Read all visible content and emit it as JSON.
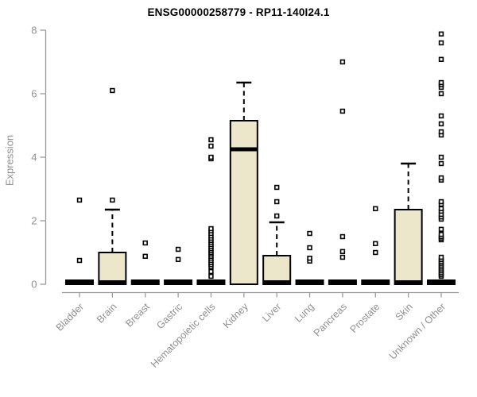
{
  "title": "ENSG00000258779 - RP11-140I24.1",
  "chart_data": {
    "type": "boxplot",
    "title": "ENSG00000258779 - RP11-140I24.1",
    "xlabel": "",
    "ylabel": "Expression",
    "ylim": [
      0,
      8
    ],
    "yticks": [
      0,
      2,
      4,
      6,
      8
    ],
    "grid": false,
    "legend": "none",
    "colors": {
      "box_fill": "#ece6cb",
      "box_border": "#000000",
      "median": "#000000",
      "whisker": "#000000",
      "outlier_stroke": "#000000",
      "outlier_fill": "#ffffff",
      "axis": "#9a9a9a",
      "tick_label": "#8f8f8f",
      "title": "#000000"
    },
    "categories": [
      "Bladder",
      "Brain",
      "Breast",
      "Gastric",
      "Hematopoietic cells",
      "Kidney",
      "Liver",
      "Lung",
      "Pancreas",
      "Prostate",
      "Skin",
      "Unknown / Other"
    ],
    "series": [
      {
        "category": "Bladder",
        "q1": 0,
        "median": 0,
        "q3": 0,
        "whisker_low": 0,
        "whisker_high": 0,
        "outliers": [
          0.75,
          2.65
        ]
      },
      {
        "category": "Brain",
        "q1": 0,
        "median": 0,
        "q3": 1.0,
        "whisker_low": 0,
        "whisker_high": 2.35,
        "outliers": [
          2.65,
          6.1
        ]
      },
      {
        "category": "Breast",
        "q1": 0,
        "median": 0,
        "q3": 0,
        "whisker_low": 0,
        "whisker_high": 0,
        "outliers": [
          0.88,
          1.3
        ]
      },
      {
        "category": "Gastric",
        "q1": 0,
        "median": 0,
        "q3": 0,
        "whisker_low": 0,
        "whisker_high": 0,
        "outliers": [
          0.78,
          1.1
        ]
      },
      {
        "category": "Hematopoietic cells",
        "q1": 0,
        "median": 0,
        "q3": 0,
        "whisker_low": 0,
        "whisker_high": 0,
        "outliers": [
          0.25,
          0.4,
          0.55,
          0.62,
          0.68,
          0.75,
          0.82,
          0.88,
          0.95,
          1.0,
          1.06,
          1.12,
          1.18,
          1.25,
          1.32,
          1.38,
          1.45,
          1.52,
          1.6,
          1.68,
          1.75,
          3.95,
          4.0,
          4.35,
          4.55
        ]
      },
      {
        "category": "Kidney",
        "q1": 0,
        "median": 4.25,
        "q3": 5.15,
        "whisker_low": 0,
        "whisker_high": 6.35,
        "outliers": []
      },
      {
        "category": "Liver",
        "q1": 0,
        "median": 0,
        "q3": 0.9,
        "whisker_low": 0,
        "whisker_high": 1.95,
        "outliers": [
          2.15,
          2.6,
          3.05
        ]
      },
      {
        "category": "Lung",
        "q1": 0,
        "median": 0,
        "q3": 0,
        "whisker_low": 0,
        "whisker_high": 0,
        "outliers": [
          0.73,
          0.82,
          1.15,
          1.6
        ]
      },
      {
        "category": "Pancreas",
        "q1": 0,
        "median": 0,
        "q3": 0,
        "whisker_low": 0,
        "whisker_high": 0,
        "outliers": [
          0.85,
          1.03,
          1.5,
          5.45,
          7.0
        ]
      },
      {
        "category": "Prostate",
        "q1": 0,
        "median": 0,
        "q3": 0,
        "whisker_low": 0,
        "whisker_high": 0,
        "outliers": [
          1.0,
          1.28,
          2.38
        ]
      },
      {
        "category": "Skin",
        "q1": 0,
        "median": 0,
        "q3": 2.35,
        "whisker_low": 0,
        "whisker_high": 3.8,
        "outliers": []
      },
      {
        "category": "Unknown / Other",
        "q1": 0,
        "median": 0,
        "q3": 0,
        "whisker_low": 0,
        "whisker_high": 0,
        "outliers": [
          0.25,
          0.3,
          0.36,
          0.42,
          0.48,
          0.54,
          0.6,
          0.66,
          0.72,
          0.78,
          0.85,
          1.4,
          1.45,
          1.5,
          1.57,
          1.73,
          2.05,
          2.12,
          2.2,
          2.3,
          2.38,
          2.52,
          2.6,
          3.28,
          3.35,
          3.8,
          4.0,
          4.7,
          4.8,
          5.05,
          5.3,
          6.0,
          6.2,
          6.28,
          6.35,
          7.08,
          7.6,
          7.88
        ]
      }
    ]
  }
}
